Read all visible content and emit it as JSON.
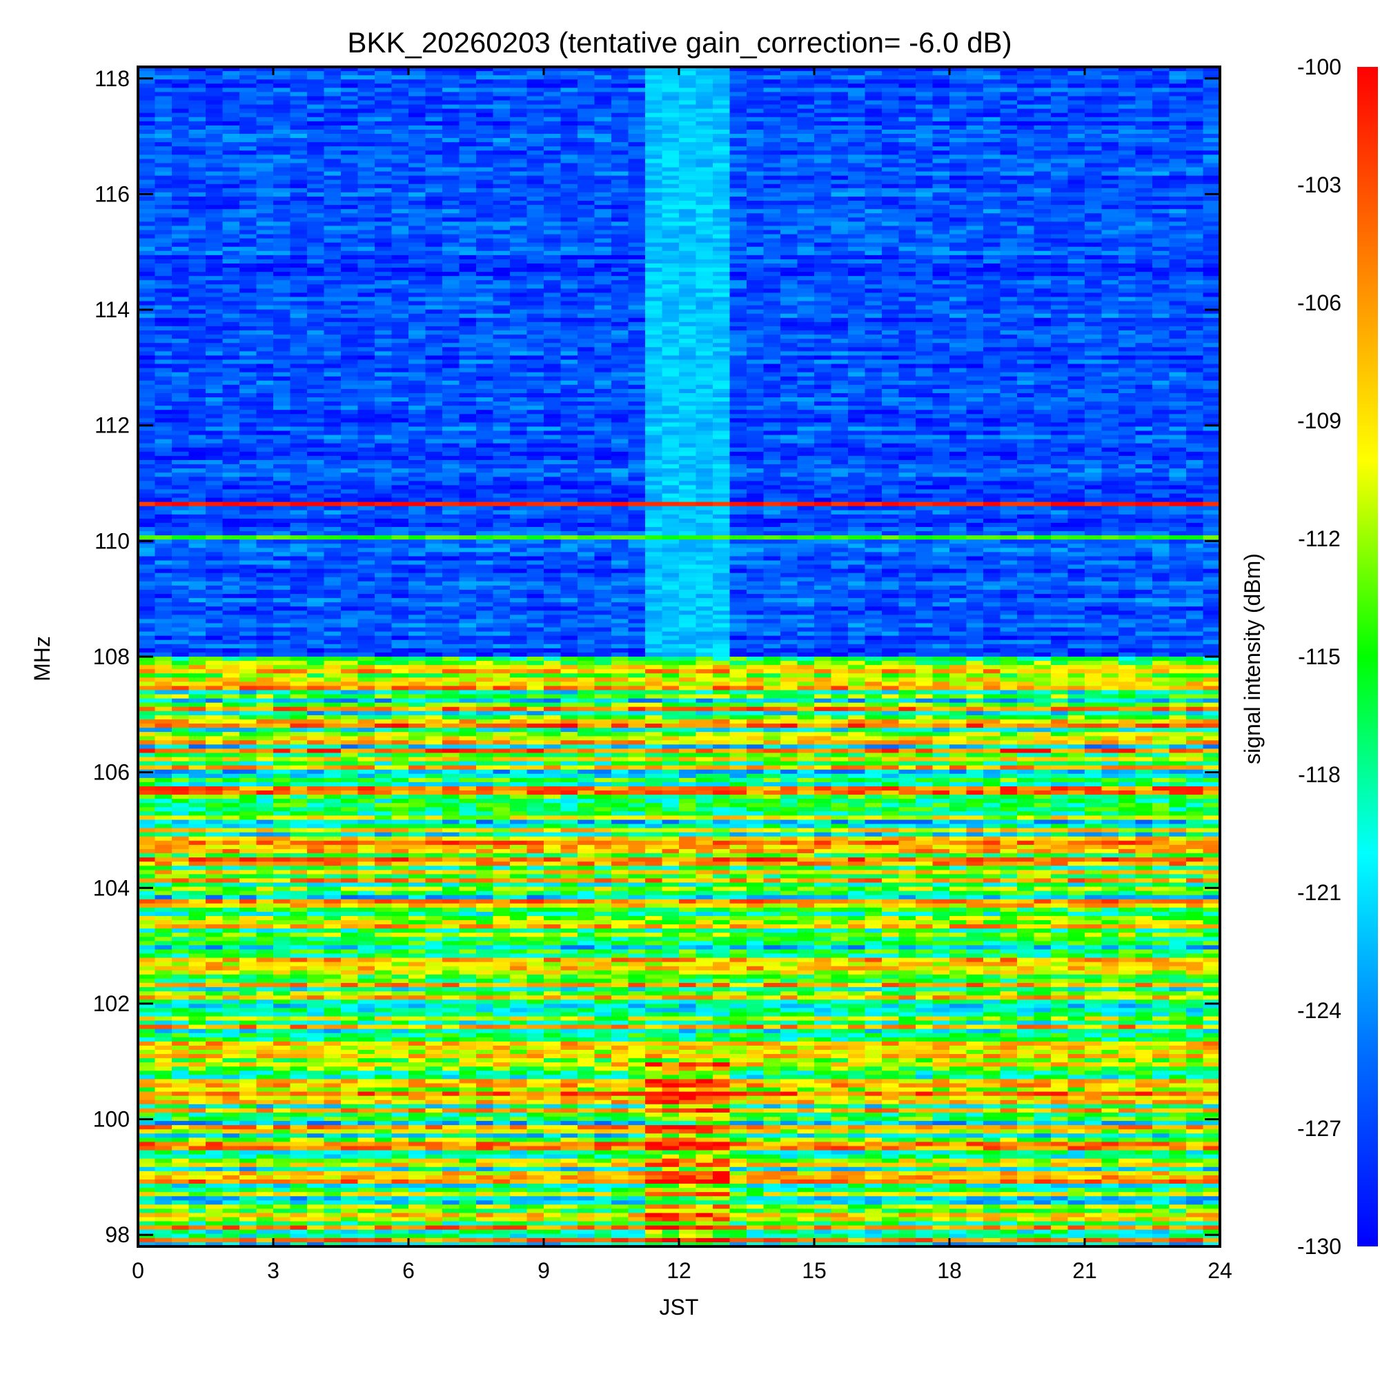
{
  "chart_data": {
    "type": "heatmap",
    "title": "BKK_20260203 (tentative gain_correction= -6.0 dB)",
    "xlabel": "JST",
    "ylabel": "MHz",
    "xlim": [
      0,
      24
    ],
    "ylim": [
      97.8,
      118.2
    ],
    "xticks": [
      "0",
      "3",
      "6",
      "9",
      "12",
      "15",
      "18",
      "21",
      "24"
    ],
    "yticks": [
      "98",
      "100",
      "102",
      "104",
      "106",
      "108",
      "110",
      "112",
      "114",
      "116",
      "118"
    ],
    "colorbar": {
      "label": "signal intensity (dBm)",
      "min": -130,
      "max": -100,
      "ticks": [
        "-100",
        "-103",
        "-106",
        "-109",
        "-112",
        "-115",
        "-118",
        "-121",
        "-124",
        "-127",
        "-130"
      ],
      "colormap": [
        "#0000ff",
        "#0070ff",
        "#00ffff",
        "#00ff00",
        "#ffff00",
        "#ff8000",
        "#ff0000"
      ]
    },
    "regions": [
      {
        "band": "108-118 MHz",
        "typical_dBm": -127,
        "note": "mostly blue noise floor"
      },
      {
        "band": "97.8-108 MHz",
        "typical_dBm": -104,
        "note": "FM broadcast band, strong red/yellow signals"
      },
      {
        "band": "11.2-13.2 JST",
        "typical_dBm": -122,
        "note": "raised noise floor (cyan) above 108 MHz"
      },
      {
        "band": "110.1 MHz",
        "typical_dBm": -114,
        "note": "persistent narrow line"
      },
      {
        "band": "110.65 MHz",
        "typical_dBm": -101,
        "note": "persistent strong narrow line"
      }
    ]
  }
}
